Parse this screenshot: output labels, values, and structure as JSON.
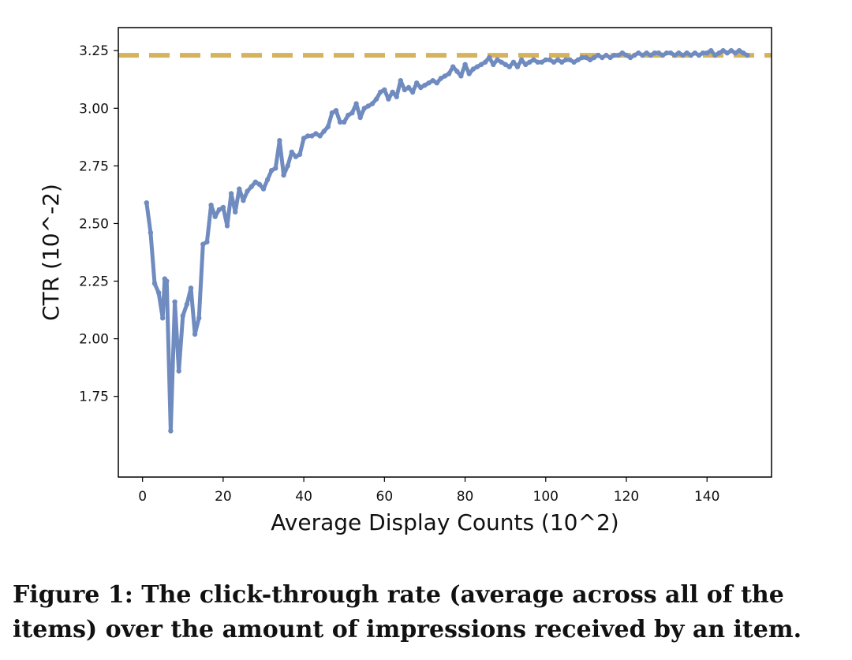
{
  "chart_data": {
    "type": "line",
    "xlabel": "Average Display Counts (10^2)",
    "ylabel": "CTR (10^-2)",
    "xlim": [
      -6,
      156
    ],
    "ylim": [
      1.4,
      3.35
    ],
    "xticks": [
      0,
      20,
      40,
      60,
      80,
      100,
      120,
      140
    ],
    "xtick_labels": [
      "0",
      "20",
      "40",
      "60",
      "80",
      "100",
      "120",
      "140"
    ],
    "yticks": [
      1.75,
      2.0,
      2.25,
      2.5,
      2.75,
      3.0,
      3.25
    ],
    "ytick_labels": [
      "1.75",
      "2.00",
      "2.25",
      "2.50",
      "2.75",
      "3.00",
      "3.25"
    ],
    "grid": false,
    "reference_line": {
      "y": 3.23,
      "style": "dashed",
      "color": "#d4b25e"
    },
    "series": [
      {
        "color": "#6f8bbf",
        "x": [
          1,
          2,
          3,
          4,
          5,
          5.5,
          6,
          7,
          8,
          9,
          10,
          11,
          12,
          13,
          14,
          15,
          16,
          17,
          18,
          19,
          20,
          21,
          22,
          23,
          24,
          25,
          26,
          27,
          28,
          29,
          30,
          31,
          32,
          33,
          34,
          35,
          36,
          37,
          38,
          39,
          40,
          41,
          42,
          43,
          44,
          45,
          46,
          47,
          48,
          49,
          50,
          51,
          52,
          53,
          54,
          55,
          56,
          57,
          58,
          59,
          60,
          61,
          62,
          63,
          64,
          65,
          66,
          67,
          68,
          69,
          70,
          71,
          72,
          73,
          74,
          75,
          76,
          77,
          78,
          79,
          80,
          81,
          82,
          83,
          84,
          85,
          86,
          87,
          88,
          89,
          90,
          91,
          92,
          93,
          94,
          95,
          96,
          97,
          98,
          99,
          100,
          101,
          102,
          103,
          104,
          105,
          106,
          107,
          108,
          109,
          110,
          111,
          112,
          113,
          114,
          115,
          116,
          117,
          118,
          119,
          120,
          121,
          122,
          123,
          124,
          125,
          126,
          127,
          128,
          129,
          130,
          131,
          132,
          133,
          134,
          135,
          136,
          137,
          138,
          139,
          140,
          141,
          142,
          143,
          144,
          145,
          146,
          147,
          148,
          149,
          150
        ],
        "y": [
          2.59,
          2.46,
          2.24,
          2.2,
          2.09,
          2.26,
          2.25,
          1.6,
          2.16,
          1.86,
          2.1,
          2.15,
          2.22,
          2.02,
          2.09,
          2.41,
          2.42,
          2.58,
          2.53,
          2.56,
          2.57,
          2.49,
          2.63,
          2.55,
          2.65,
          2.6,
          2.64,
          2.66,
          2.68,
          2.67,
          2.65,
          2.69,
          2.73,
          2.74,
          2.86,
          2.71,
          2.75,
          2.81,
          2.79,
          2.8,
          2.87,
          2.88,
          2.88,
          2.89,
          2.88,
          2.9,
          2.92,
          2.98,
          2.99,
          2.94,
          2.94,
          2.97,
          2.98,
          3.02,
          2.96,
          3.0,
          3.01,
          3.02,
          3.04,
          3.07,
          3.08,
          3.04,
          3.07,
          3.05,
          3.12,
          3.08,
          3.09,
          3.07,
          3.11,
          3.09,
          3.1,
          3.11,
          3.12,
          3.11,
          3.13,
          3.14,
          3.15,
          3.18,
          3.16,
          3.14,
          3.19,
          3.15,
          3.17,
          3.18,
          3.19,
          3.2,
          3.22,
          3.19,
          3.21,
          3.2,
          3.19,
          3.18,
          3.2,
          3.18,
          3.21,
          3.19,
          3.2,
          3.21,
          3.2,
          3.2,
          3.21,
          3.21,
          3.2,
          3.21,
          3.2,
          3.21,
          3.21,
          3.2,
          3.21,
          3.22,
          3.22,
          3.21,
          3.22,
          3.23,
          3.22,
          3.23,
          3.22,
          3.23,
          3.23,
          3.24,
          3.23,
          3.22,
          3.23,
          3.24,
          3.23,
          3.24,
          3.23,
          3.24,
          3.24,
          3.23,
          3.24,
          3.24,
          3.23,
          3.24,
          3.23,
          3.24,
          3.23,
          3.24,
          3.23,
          3.24,
          3.24,
          3.25,
          3.23,
          3.24,
          3.25,
          3.24,
          3.25,
          3.24,
          3.25,
          3.24,
          3.23
        ]
      }
    ]
  },
  "caption": "Figure 1: The click-through rate (average across all of the items) over the amount of impressions received by an item."
}
